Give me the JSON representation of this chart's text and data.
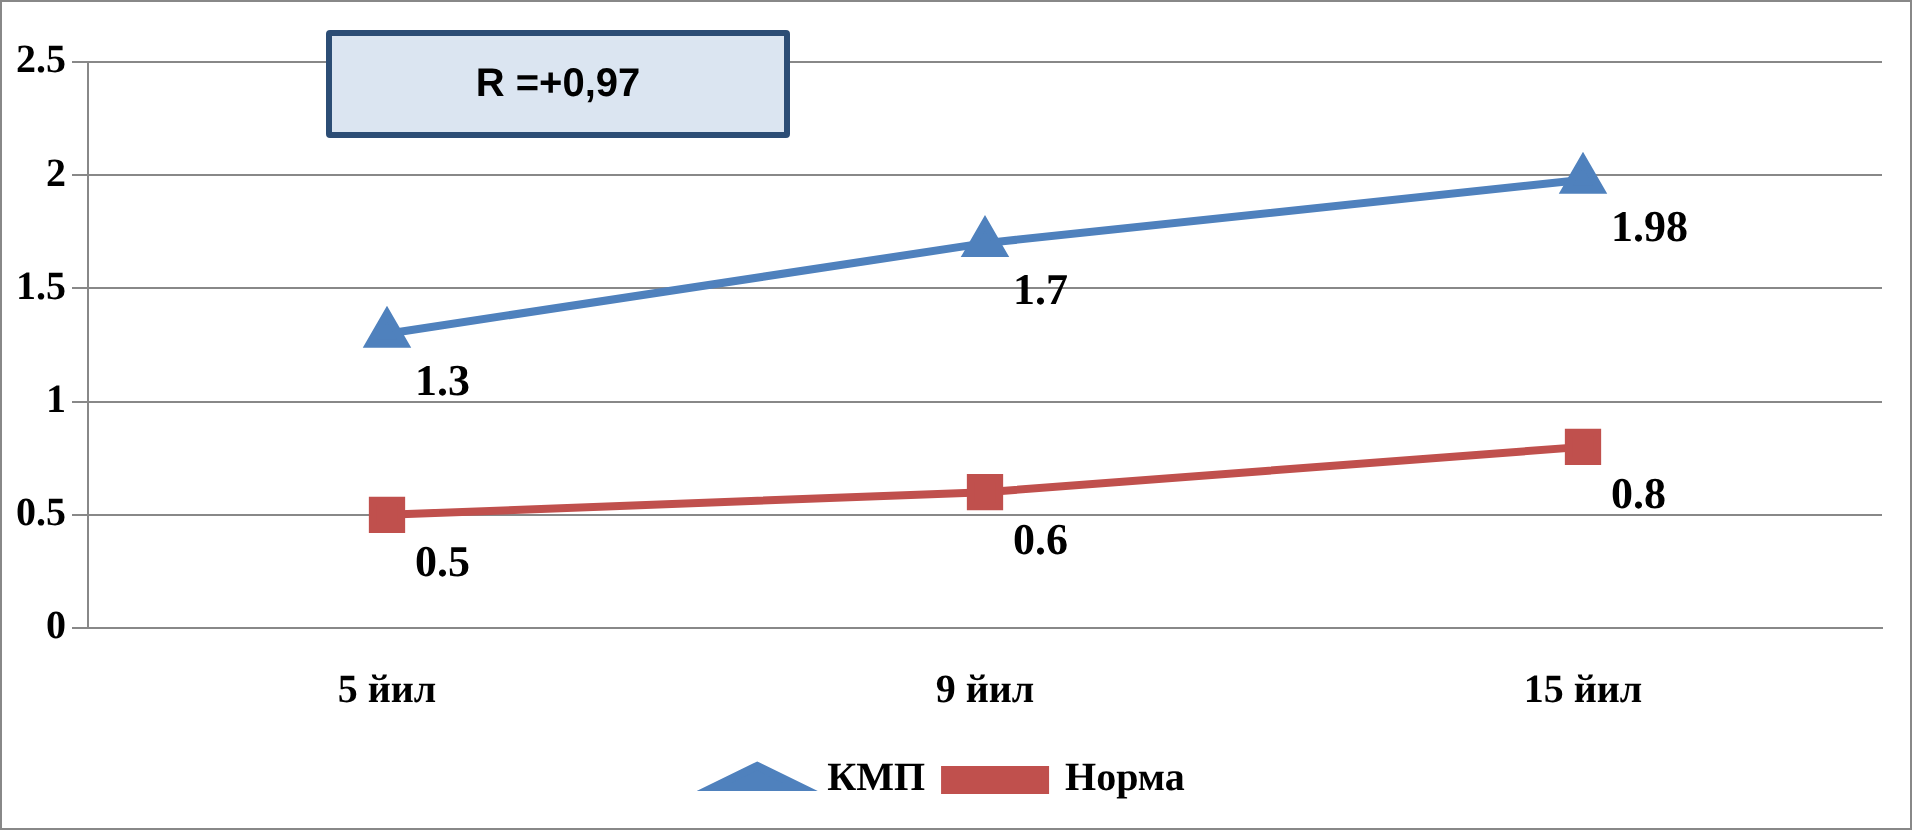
{
  "chart_data": {
    "type": "line",
    "categories": [
      "5 йил",
      "9 йил",
      "15 йил"
    ],
    "series": [
      {
        "name": "КМП",
        "color": "#4f81bd",
        "marker": "triangle",
        "values": [
          1.3,
          1.7,
          1.98
        ]
      },
      {
        "name": "Норма",
        "color": "#c0504d",
        "marker": "square",
        "values": [
          0.5,
          0.6,
          0.8
        ]
      }
    ],
    "ylim": [
      0,
      2.5
    ],
    "yticks": [
      0,
      0.5,
      1,
      1.5,
      2,
      2.5
    ],
    "grid": "y",
    "legend": "bottom",
    "data_labels": true,
    "annotations": [
      "R =+0,97"
    ]
  }
}
